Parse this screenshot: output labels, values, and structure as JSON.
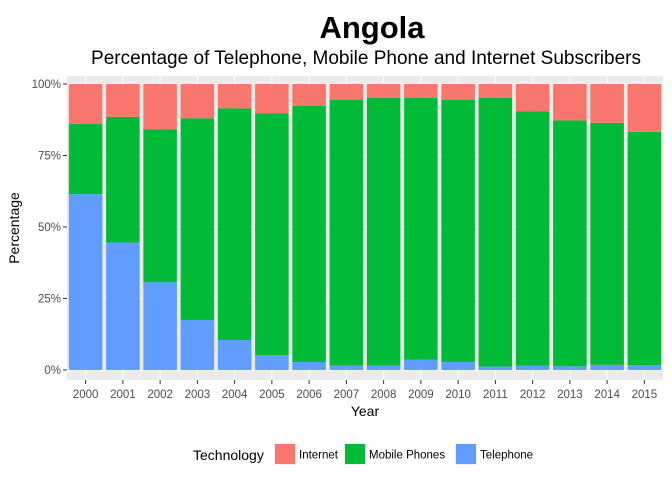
{
  "chart_data": {
    "type": "bar",
    "stacked": true,
    "title": "Angola",
    "subtitle": "Percentage of Telephone, Mobile Phone and Internet Subscribers",
    "xlabel": "Year",
    "ylabel": "Percentage",
    "ylim": [
      0,
      100
    ],
    "y_ticks": [
      "0%",
      "25%",
      "50%",
      "75%",
      "100%"
    ],
    "y_tick_values": [
      0,
      25,
      50,
      75,
      100
    ],
    "categories": [
      "2000",
      "2001",
      "2002",
      "2003",
      "2004",
      "2005",
      "2006",
      "2007",
      "2008",
      "2009",
      "2010",
      "2011",
      "2012",
      "2013",
      "2014",
      "2015"
    ],
    "legend_title": "Technology",
    "legend_position": "bottom",
    "grid": true,
    "series": [
      {
        "name": "Telephone",
        "color": "#619CFF",
        "values": [
          61.5,
          44.6,
          30.7,
          17.5,
          10.5,
          5.2,
          2.8,
          1.6,
          1.6,
          3.6,
          2.8,
          1.2,
          1.5,
          1.3,
          1.8,
          1.7
        ]
      },
      {
        "name": "Mobile Phones",
        "color": "#00BA38",
        "values": [
          24.5,
          43.9,
          53.5,
          70.5,
          81.0,
          84.6,
          89.5,
          92.8,
          93.6,
          91.6,
          91.6,
          94.0,
          88.9,
          86.0,
          84.6,
          81.6
        ]
      },
      {
        "name": "Internet",
        "color": "#F8766D",
        "values": [
          14.0,
          11.5,
          15.8,
          12.0,
          8.5,
          10.2,
          7.7,
          5.6,
          4.8,
          4.8,
          5.6,
          4.8,
          9.6,
          12.7,
          13.6,
          16.7
        ]
      }
    ],
    "legend_order": [
      "Internet",
      "Mobile Phones",
      "Telephone"
    ]
  }
}
